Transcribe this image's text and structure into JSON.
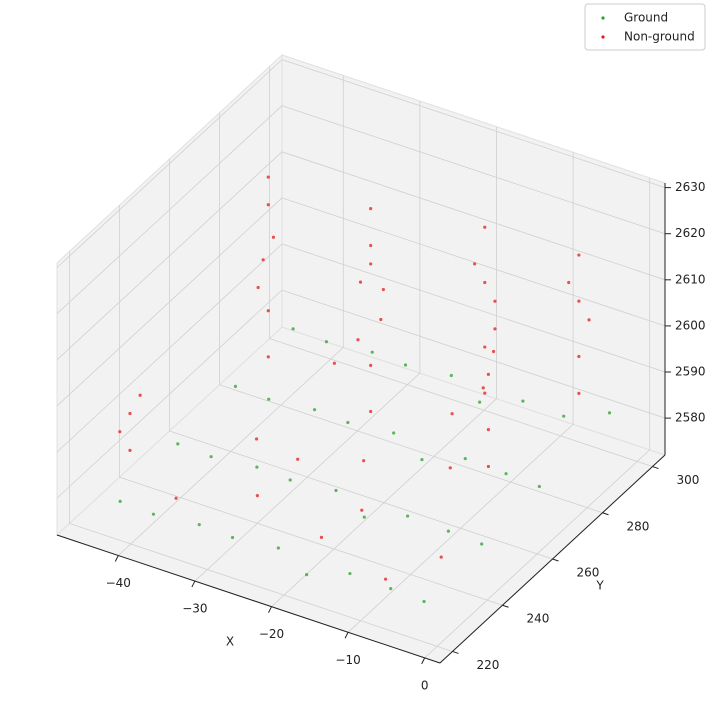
{
  "chart_data": {
    "type": "scatter3d",
    "xlabel": "X",
    "ylabel": "Y",
    "xlim": [
      -48,
      2
    ],
    "ylim": [
      215,
      305
    ],
    "zlim": [
      2572,
      2631
    ],
    "xticks": [
      {
        "value": -40,
        "label": "−40"
      },
      {
        "value": -30,
        "label": "−30"
      },
      {
        "value": -20,
        "label": "−20"
      },
      {
        "value": -10,
        "label": "−10"
      },
      0
    ],
    "yticks": [
      220,
      240,
      260,
      280,
      300
    ],
    "zticks": [
      2580,
      2590,
      2600,
      2610,
      2620,
      2630
    ],
    "grid": true,
    "legend": "upper right",
    "series": [
      {
        "name": "Ground",
        "color": "#2ca02c",
        "x": [
          -44,
          -39,
          -34,
          -29,
          -24,
          -19,
          -14,
          -9,
          -4,
          -43,
          -38,
          -33,
          -28,
          -23,
          -18,
          -13,
          -8,
          -3,
          -42,
          -37,
          -32,
          -27,
          -22,
          -17,
          -12,
          -7,
          -2,
          -41,
          -36,
          -31,
          -26,
          -21,
          -16,
          -11,
          -6,
          -1
        ],
        "y": [
          228,
          226,
          229,
          227,
          230,
          226,
          228,
          229,
          227,
          248,
          246,
          249,
          247,
          250,
          246,
          248,
          249,
          247,
          268,
          266,
          269,
          267,
          270,
          266,
          268,
          269,
          267,
          288,
          286,
          289,
          287,
          290,
          286,
          288,
          289,
          292
        ],
        "z": [
          2575,
          2576,
          2575,
          2576,
          2575,
          2574,
          2576,
          2575,
          2576,
          2578,
          2579,
          2578,
          2579,
          2578,
          2577,
          2579,
          2578,
          2579,
          2581,
          2582,
          2581,
          2582,
          2581,
          2580,
          2582,
          2581,
          2582,
          2584,
          2585,
          2584,
          2585,
          2584,
          2583,
          2585,
          2584,
          2586
        ]
      },
      {
        "name": "Non-ground",
        "color": "#e41a1c",
        "x": [
          -45,
          -45,
          -44,
          -46,
          -40,
          -40,
          -41,
          -39,
          -40,
          -40,
          -41,
          -25,
          -25,
          -24,
          -26,
          -25,
          -25,
          -24,
          -26,
          -25,
          -15,
          -15,
          -14,
          -16,
          -15,
          -15,
          -14,
          -5,
          -5,
          -4,
          -6,
          -5,
          -5,
          -8,
          -8,
          -9,
          -7,
          -8,
          -30,
          -20,
          -10,
          -35,
          -28,
          -18,
          -12,
          -38,
          -22,
          -6,
          -33,
          -16
        ],
        "y": [
          235,
          235,
          236,
          234,
          275,
          275,
          276,
          274,
          275,
          275,
          274,
          270,
          270,
          271,
          269,
          270,
          270,
          272,
          268,
          270,
          285,
          285,
          286,
          284,
          285,
          285,
          286,
          292,
          292,
          293,
          291,
          292,
          292,
          265,
          265,
          266,
          264,
          265,
          240,
          235,
          230,
          255,
          250,
          245,
          262,
          232,
          258,
          240,
          280,
          275
        ],
        "z": [
          2582,
          2590,
          2594,
          2586,
          2585,
          2595,
          2605,
          2612,
          2618,
          2624,
          2600,
          2584,
          2594,
          2604,
          2612,
          2620,
          2628,
          2610,
          2600,
          2616,
          2586,
          2596,
          2606,
          2614,
          2622,
          2610,
          2600,
          2588,
          2596,
          2604,
          2612,
          2618,
          2608,
          2584,
          2592,
          2600,
          2610,
          2604,
          2578,
          2577,
          2576,
          2580,
          2582,
          2579,
          2583,
          2577,
          2581,
          2578,
          2585,
          2586
        ]
      }
    ]
  }
}
